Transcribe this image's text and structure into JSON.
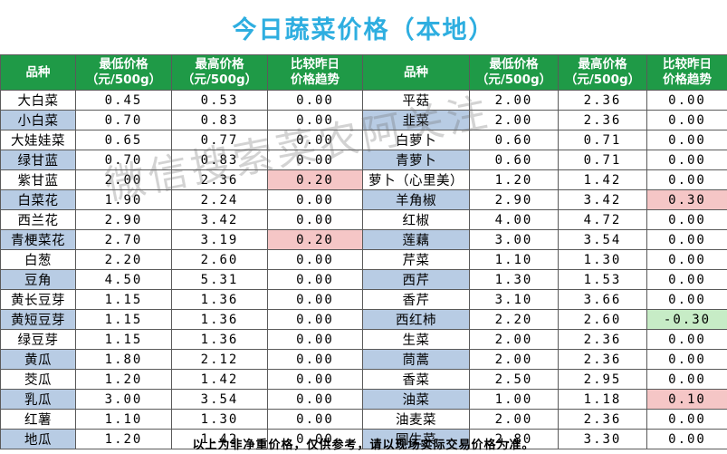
{
  "title": "今日蔬菜价格（本地）",
  "headers": [
    "品种",
    [
      "最低价格",
      "（元/500g）"
    ],
    [
      "最高价格",
      "（元/500g）"
    ],
    [
      "比较昨日",
      "价格趋势"
    ],
    "品种",
    [
      "最低价格",
      "（元/500g）"
    ],
    [
      "最高价格",
      "（元/500g）"
    ],
    [
      "比较昨日",
      "价格趋势"
    ]
  ],
  "colors": {
    "title": "#2eaee0",
    "header_bg": "#1f9a47",
    "alt_row": "#b8cce4",
    "up": "#f5c6c6",
    "down": "#c7ecc6"
  },
  "rows": [
    {
      "left": {
        "name": "大白菜",
        "low": "0.45",
        "high": "0.53",
        "trend": "0.00",
        "trend_state": "flat"
      },
      "right": {
        "name": "平菇",
        "low": "2.00",
        "high": "2.36",
        "trend": "0.00",
        "trend_state": "flat"
      }
    },
    {
      "left": {
        "name": "小白菜",
        "low": "0.70",
        "high": "0.83",
        "trend": "0.00",
        "trend_state": "flat"
      },
      "right": {
        "name": "韭菜",
        "low": "2.00",
        "high": "2.36",
        "trend": "0.00",
        "trend_state": "flat"
      }
    },
    {
      "left": {
        "name": "大娃娃菜",
        "low": "0.65",
        "high": "0.77",
        "trend": "0.00",
        "trend_state": "flat"
      },
      "right": {
        "name": "白萝卜",
        "low": "0.60",
        "high": "0.71",
        "trend": "0.00",
        "trend_state": "flat"
      }
    },
    {
      "left": {
        "name": "绿甘蓝",
        "low": "0.70",
        "high": "0.83",
        "trend": "0.00",
        "trend_state": "flat"
      },
      "right": {
        "name": "青萝卜",
        "low": "0.60",
        "high": "0.71",
        "trend": "0.00",
        "trend_state": "flat"
      }
    },
    {
      "left": {
        "name": "紫甘蓝",
        "low": "2.00",
        "high": "2.36",
        "trend": "0.20",
        "trend_state": "up"
      },
      "right": {
        "name": "萝卜（心里美）",
        "low": "1.20",
        "high": "1.42",
        "trend": "0.00",
        "trend_state": "flat"
      }
    },
    {
      "left": {
        "name": "白菜花",
        "low": "1.90",
        "high": "2.24",
        "trend": "0.00",
        "trend_state": "flat"
      },
      "right": {
        "name": "羊角椒",
        "low": "2.90",
        "high": "3.42",
        "trend": "0.30",
        "trend_state": "up"
      }
    },
    {
      "left": {
        "name": "西兰花",
        "low": "2.90",
        "high": "3.42",
        "trend": "0.00",
        "trend_state": "flat"
      },
      "right": {
        "name": "红椒",
        "low": "4.00",
        "high": "4.72",
        "trend": "0.00",
        "trend_state": "flat"
      }
    },
    {
      "left": {
        "name": "青梗菜花",
        "low": "2.70",
        "high": "3.19",
        "trend": "0.20",
        "trend_state": "up"
      },
      "right": {
        "name": "莲藕",
        "low": "3.00",
        "high": "3.54",
        "trend": "0.00",
        "trend_state": "flat"
      }
    },
    {
      "left": {
        "name": "白葱",
        "low": "2.20",
        "high": "2.60",
        "trend": "0.00",
        "trend_state": "flat"
      },
      "right": {
        "name": "芹菜",
        "low": "1.10",
        "high": "1.30",
        "trend": "0.00",
        "trend_state": "flat"
      }
    },
    {
      "left": {
        "name": "豆角",
        "low": "4.50",
        "high": "5.31",
        "trend": "0.00",
        "trend_state": "flat"
      },
      "right": {
        "name": "西芹",
        "low": "1.30",
        "high": "1.53",
        "trend": "0.00",
        "trend_state": "flat"
      }
    },
    {
      "left": {
        "name": "黄长豆芽",
        "low": "1.15",
        "high": "1.36",
        "trend": "0.00",
        "trend_state": "flat"
      },
      "right": {
        "name": "香芹",
        "low": "3.10",
        "high": "3.66",
        "trend": "0.00",
        "trend_state": "flat"
      }
    },
    {
      "left": {
        "name": "黄短豆芽",
        "low": "1.15",
        "high": "1.36",
        "trend": "0.00",
        "trend_state": "flat"
      },
      "right": {
        "name": "西红柿",
        "low": "2.20",
        "high": "2.60",
        "trend": "-0.30",
        "trend_state": "down"
      }
    },
    {
      "left": {
        "name": "绿豆芽",
        "low": "1.15",
        "high": "1.36",
        "trend": "0.00",
        "trend_state": "flat"
      },
      "right": {
        "name": "生菜",
        "low": "2.00",
        "high": "2.36",
        "trend": "0.00",
        "trend_state": "flat"
      }
    },
    {
      "left": {
        "name": "黄瓜",
        "low": "1.80",
        "high": "2.12",
        "trend": "0.00",
        "trend_state": "flat"
      },
      "right": {
        "name": "茼蒿",
        "low": "2.00",
        "high": "2.36",
        "trend": "0.00",
        "trend_state": "flat"
      }
    },
    {
      "left": {
        "name": "茭瓜",
        "low": "1.20",
        "high": "1.42",
        "trend": "0.00",
        "trend_state": "flat"
      },
      "right": {
        "name": "香菜",
        "low": "2.50",
        "high": "2.95",
        "trend": "0.00",
        "trend_state": "flat"
      }
    },
    {
      "left": {
        "name": "乳瓜",
        "low": "3.00",
        "high": "3.54",
        "trend": "0.00",
        "trend_state": "flat"
      },
      "right": {
        "name": "油菜",
        "low": "1.00",
        "high": "1.18",
        "trend": "0.10",
        "trend_state": "up"
      }
    },
    {
      "left": {
        "name": "红薯",
        "low": "1.10",
        "high": "1.30",
        "trend": "0.00",
        "trend_state": "flat"
      },
      "right": {
        "name": "油麦菜",
        "low": "2.00",
        "high": "2.36",
        "trend": "0.00",
        "trend_state": "flat"
      }
    },
    {
      "left": {
        "name": "地瓜",
        "low": "1.20",
        "high": "1.42",
        "trend": "0.00",
        "trend_state": "flat"
      },
      "right": {
        "name": "圆生菜",
        "low": "2.80",
        "high": "3.30",
        "trend": "0.00",
        "trend_state": "flat"
      }
    }
  ],
  "footer": "以上为非净重价格，仅供参考，请以现场实际交易价格为准。",
  "watermark": "微信搜索菜农阿关注"
}
